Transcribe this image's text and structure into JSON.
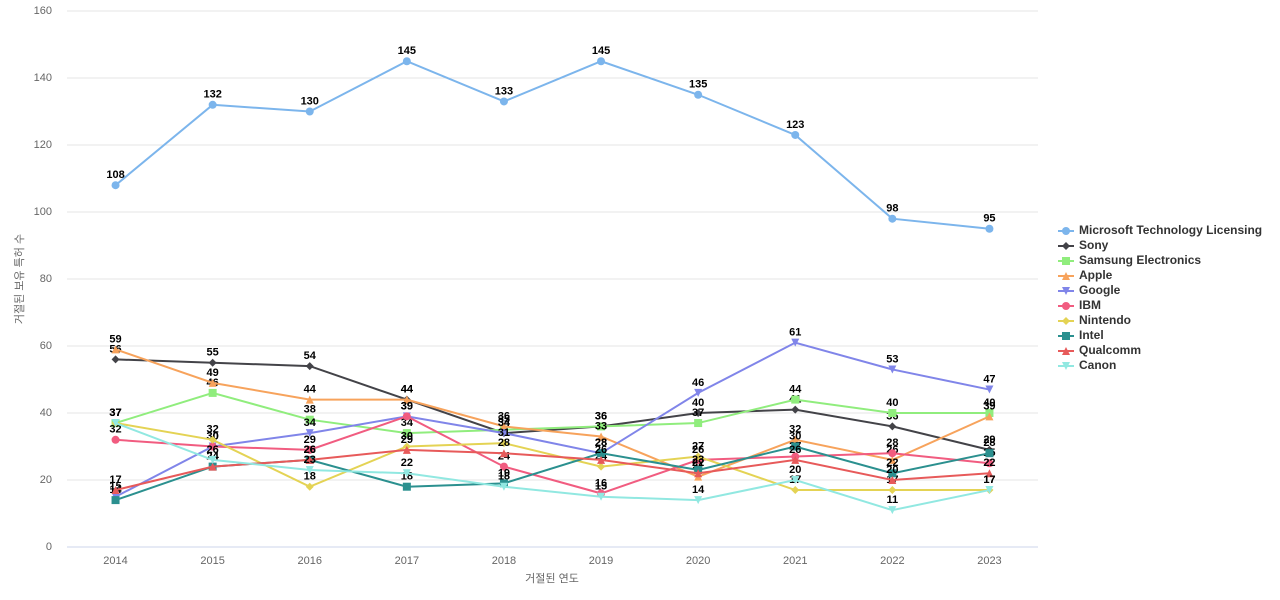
{
  "chart_data": {
    "type": "line",
    "x_label": "거절된 연도",
    "y_label": "거절된 보유 특허 수",
    "categories": [
      "2014",
      "2015",
      "2016",
      "2017",
      "2018",
      "2019",
      "2020",
      "2021",
      "2022",
      "2023"
    ],
    "ylim": [
      0,
      160
    ],
    "yticks": [
      0,
      20,
      40,
      60,
      80,
      100,
      120,
      140,
      160
    ],
    "grid": true,
    "legend": "right",
    "series": [
      {
        "name": "Microsoft Technology Licensing",
        "color": "#7cb5ec",
        "marker": "circle",
        "values": [
          108,
          132,
          130,
          145,
          133,
          145,
          135,
          123,
          98,
          95
        ]
      },
      {
        "name": "Sony",
        "color": "#434348",
        "marker": "diamond",
        "values": [
          56,
          55,
          54,
          44,
          34,
          36,
          40,
          41,
          36,
          29
        ]
      },
      {
        "name": "Samsung Electronics",
        "color": "#90ed7d",
        "marker": "square",
        "values": [
          37,
          46,
          38,
          34,
          35,
          36,
          37,
          44,
          40,
          40
        ]
      },
      {
        "name": "Apple",
        "color": "#f7a35c",
        "marker": "triangle",
        "values": [
          59,
          49,
          44,
          44,
          36,
          33,
          21,
          32,
          26,
          39
        ]
      },
      {
        "name": "Google",
        "color": "#8085e9",
        "marker": "triangle-down",
        "values": [
          15,
          30,
          34,
          39,
          34,
          28,
          46,
          61,
          53,
          47
        ]
      },
      {
        "name": "IBM",
        "color": "#f15c80",
        "marker": "circle",
        "values": [
          32,
          30,
          29,
          39,
          24,
          16,
          26,
          27,
          28,
          25
        ]
      },
      {
        "name": "Nintendo",
        "color": "#e4d354",
        "marker": "diamond",
        "values": [
          37,
          32,
          18,
          30,
          31,
          24,
          27,
          17,
          17,
          17
        ]
      },
      {
        "name": "Intel",
        "color": "#2b908f",
        "marker": "square",
        "values": [
          14,
          24,
          26,
          18,
          19,
          28,
          23,
          30,
          22,
          28
        ]
      },
      {
        "name": "Qualcomm",
        "color": "#e75a5a",
        "marker": "triangle",
        "values": [
          17,
          24,
          26,
          29,
          28,
          26,
          22,
          26,
          20,
          22
        ]
      },
      {
        "name": "Canon",
        "color": "#91e8e1",
        "marker": "triangle-down",
        "values": [
          37,
          26,
          23,
          22,
          18,
          15,
          14,
          20,
          11,
          17
        ]
      }
    ]
  }
}
